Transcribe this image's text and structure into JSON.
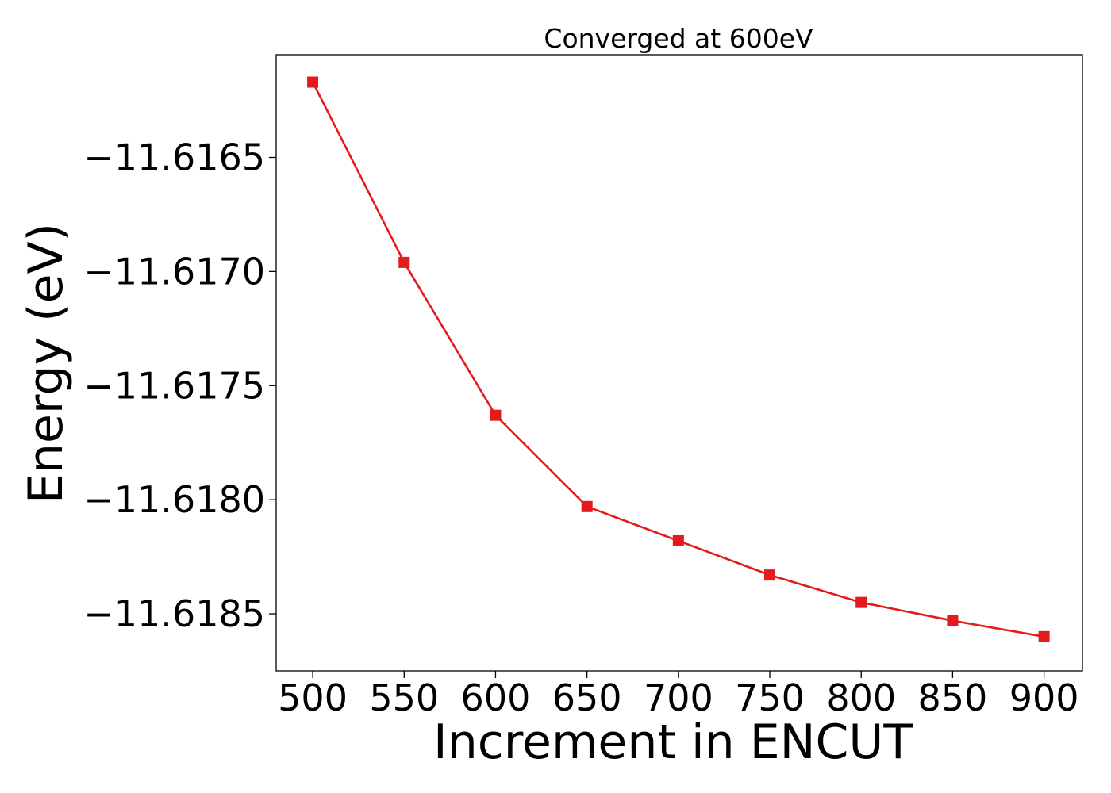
{
  "chart_data": {
    "type": "line",
    "title": "Converged at 600eV",
    "xlabel": "Increment in ENCUT",
    "ylabel": "Energy (eV)",
    "x": [
      500,
      550,
      600,
      650,
      700,
      750,
      800,
      850,
      900
    ],
    "series": [
      {
        "values": [
          -11.61617,
          -11.61696,
          -11.61763,
          -11.61803,
          -11.61818,
          -11.61833,
          -11.61845,
          -11.61853,
          -11.6186
        ],
        "color": "#e41a1c",
        "marker": "square"
      }
    ],
    "xticks": [
      500,
      550,
      600,
      650,
      700,
      750,
      800,
      850,
      900
    ],
    "xtick_labels": [
      "500",
      "550",
      "600",
      "650",
      "700",
      "750",
      "800",
      "850",
      "900"
    ],
    "yticks": [
      -11.6165,
      -11.617,
      -11.6175,
      -11.618,
      -11.6185
    ],
    "ytick_labels": [
      "−11.6165",
      "−11.6170",
      "−11.6175",
      "−11.6180",
      "−11.6185"
    ],
    "xlim": [
      480,
      921
    ],
    "ylim": [
      -11.61875,
      -11.61605
    ],
    "grid": false
  }
}
